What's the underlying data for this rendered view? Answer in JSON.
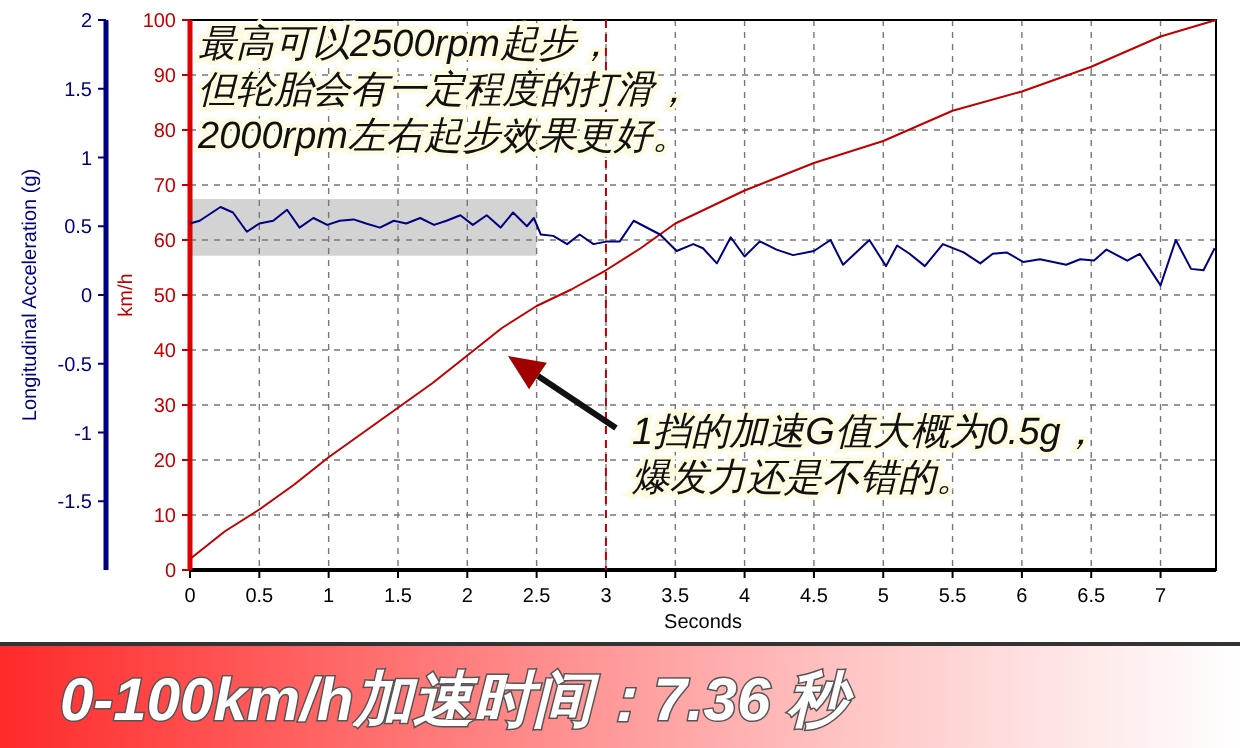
{
  "chart_data": {
    "type": "line",
    "title": "0-100km/h加速时间：7.36 秒",
    "xlabel": "Seconds",
    "ylabel": "km/h",
    "y2label": "Longitudinal Acceleration (g)",
    "xlim": [
      0,
      7.4
    ],
    "xticks": [
      0,
      0.5,
      1,
      1.5,
      2,
      2.5,
      3,
      3.5,
      4,
      4.5,
      5,
      5.5,
      6,
      6.5,
      7
    ],
    "ylim": [
      0,
      100
    ],
    "yticks": [
      0,
      10,
      20,
      30,
      40,
      50,
      60,
      70,
      80,
      90,
      100
    ],
    "y2lim": [
      -2,
      2
    ],
    "y2ticks": [
      -1.5,
      -1,
      -0.5,
      0,
      0.5,
      1,
      1.5,
      2
    ],
    "grid": true,
    "series": [
      {
        "color": "#c00000",
        "x": [
          0,
          0.25,
          0.5,
          0.75,
          1,
          1.25,
          1.5,
          1.75,
          2,
          2.25,
          2.5,
          2.75,
          3,
          3.25,
          3.5,
          3.75,
          4,
          4.5,
          5,
          5.5,
          6,
          6.5,
          7,
          7.4
        ],
        "values": [
          2,
          7,
          11,
          15.5,
          20.5,
          25,
          29.5,
          34,
          39,
          44,
          48,
          51,
          54.5,
          58.5,
          63,
          66,
          69,
          74,
          78,
          83.5,
          87,
          91.5,
          97,
          100
        ]
      },
      {
        "color": "#000080",
        "axis": "y2",
        "x": [
          0,
          0.07,
          0.22,
          0.31,
          0.41,
          0.5,
          0.6,
          0.7,
          0.79,
          0.89,
          0.99,
          1.08,
          1.18,
          1.27,
          1.37,
          1.47,
          1.56,
          1.66,
          1.76,
          1.85,
          1.95,
          2.04,
          2.14,
          2.24,
          2.33,
          2.43,
          2.48,
          2.53,
          2.62,
          2.72,
          2.81,
          2.91,
          3.01,
          3.1,
          3.2,
          3.39,
          3.51,
          3.63,
          3.7,
          3.8,
          3.9,
          4.0,
          4.11,
          4.23,
          4.35,
          4.5,
          4.62,
          4.71,
          4.9,
          5.02,
          5.1,
          5.19,
          5.3,
          5.43,
          5.58,
          5.7,
          5.79,
          5.89,
          6.01,
          6.13,
          6.32,
          6.42,
          6.52,
          6.61,
          6.76,
          6.85,
          7.0,
          7.11,
          7.22,
          7.31,
          7.39
        ],
        "values": [
          0.52,
          0.54,
          0.64,
          0.6,
          0.46,
          0.52,
          0.54,
          0.62,
          0.49,
          0.56,
          0.51,
          0.54,
          0.55,
          0.52,
          0.49,
          0.54,
          0.52,
          0.56,
          0.51,
          0.54,
          0.58,
          0.51,
          0.58,
          0.49,
          0.6,
          0.5,
          0.56,
          0.44,
          0.43,
          0.37,
          0.44,
          0.37,
          0.39,
          0.39,
          0.54,
          0.44,
          0.32,
          0.37,
          0.34,
          0.23,
          0.42,
          0.28,
          0.39,
          0.33,
          0.29,
          0.32,
          0.4,
          0.22,
          0.4,
          0.21,
          0.36,
          0.3,
          0.21,
          0.37,
          0.31,
          0.23,
          0.3,
          0.31,
          0.24,
          0.26,
          0.22,
          0.26,
          0.25,
          0.33,
          0.25,
          0.3,
          0.07,
          0.4,
          0.19,
          0.18,
          0.34
        ]
      }
    ],
    "ref_lines": [
      {
        "axis": "x",
        "value": 3,
        "color": "#c00000",
        "line_style": "dashed"
      }
    ],
    "bands": [
      {
        "axis": "x",
        "from": 0,
        "to": 2.5,
        "color": "#d3d3d3"
      }
    ],
    "annotations": [
      "最高可以2500rpm起步，但轮胎会有一定程度的打滑，2000rpm左右起步效果更好。",
      "1挡的加速G值大概为0.5g，爆发力还是不错的。"
    ]
  }
}
